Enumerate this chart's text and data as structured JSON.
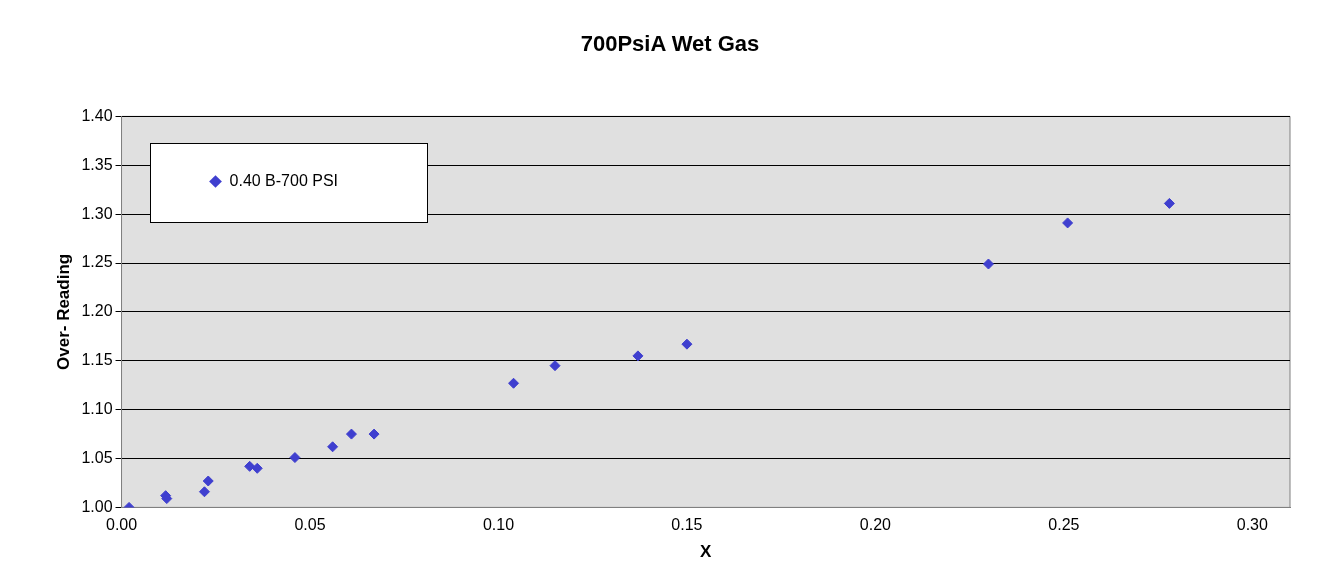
{
  "chart_data": {
    "type": "scatter",
    "title": "700PsiA Wet Gas",
    "xlabel": "X",
    "ylabel": "Over- Reading",
    "series": [
      {
        "name": "0.40 B-700 PSI",
        "color": "#3f3fcf",
        "x": [
          0.002,
          0.0117,
          0.012,
          0.022,
          0.023,
          0.034,
          0.036,
          0.046,
          0.056,
          0.061,
          0.067,
          0.104,
          0.115,
          0.137,
          0.15,
          0.23,
          0.251,
          0.278
        ],
        "values": [
          1.0,
          1.012,
          1.009,
          1.016,
          1.027,
          1.042,
          1.04,
          1.051,
          1.062,
          1.075,
          1.075,
          1.127,
          1.145,
          1.155,
          1.167,
          1.249,
          1.291,
          1.311
        ]
      }
    ],
    "xlim": [
      0,
      0.31
    ],
    "xticks": [
      {
        "value": 0,
        "label": "0.00"
      },
      {
        "value": 0.05,
        "label": "0.05"
      },
      {
        "value": 0.1,
        "label": "0.10"
      },
      {
        "value": 0.15,
        "label": "0.15"
      },
      {
        "value": 0.2,
        "label": "0.20"
      },
      {
        "value": 0.25,
        "label": "0.25"
      },
      {
        "value": 0.3,
        "label": "0.30"
      }
    ],
    "ylim": [
      1,
      1.4
    ],
    "yticks": [
      {
        "value": 1,
        "label": "1.00"
      },
      {
        "value": 1.05,
        "label": "1.05"
      },
      {
        "value": 1.1,
        "label": "1.10"
      },
      {
        "value": 1.15,
        "label": "1.15"
      },
      {
        "value": 1.2,
        "label": "1.20"
      },
      {
        "value": 1.25,
        "label": "1.25"
      },
      {
        "value": 1.3,
        "label": "1.30"
      },
      {
        "value": 1.35,
        "label": "1.35"
      },
      {
        "value": 1.4,
        "label": "1.40"
      }
    ],
    "grid": "y",
    "legend": "top left",
    "marker": "diamond"
  }
}
